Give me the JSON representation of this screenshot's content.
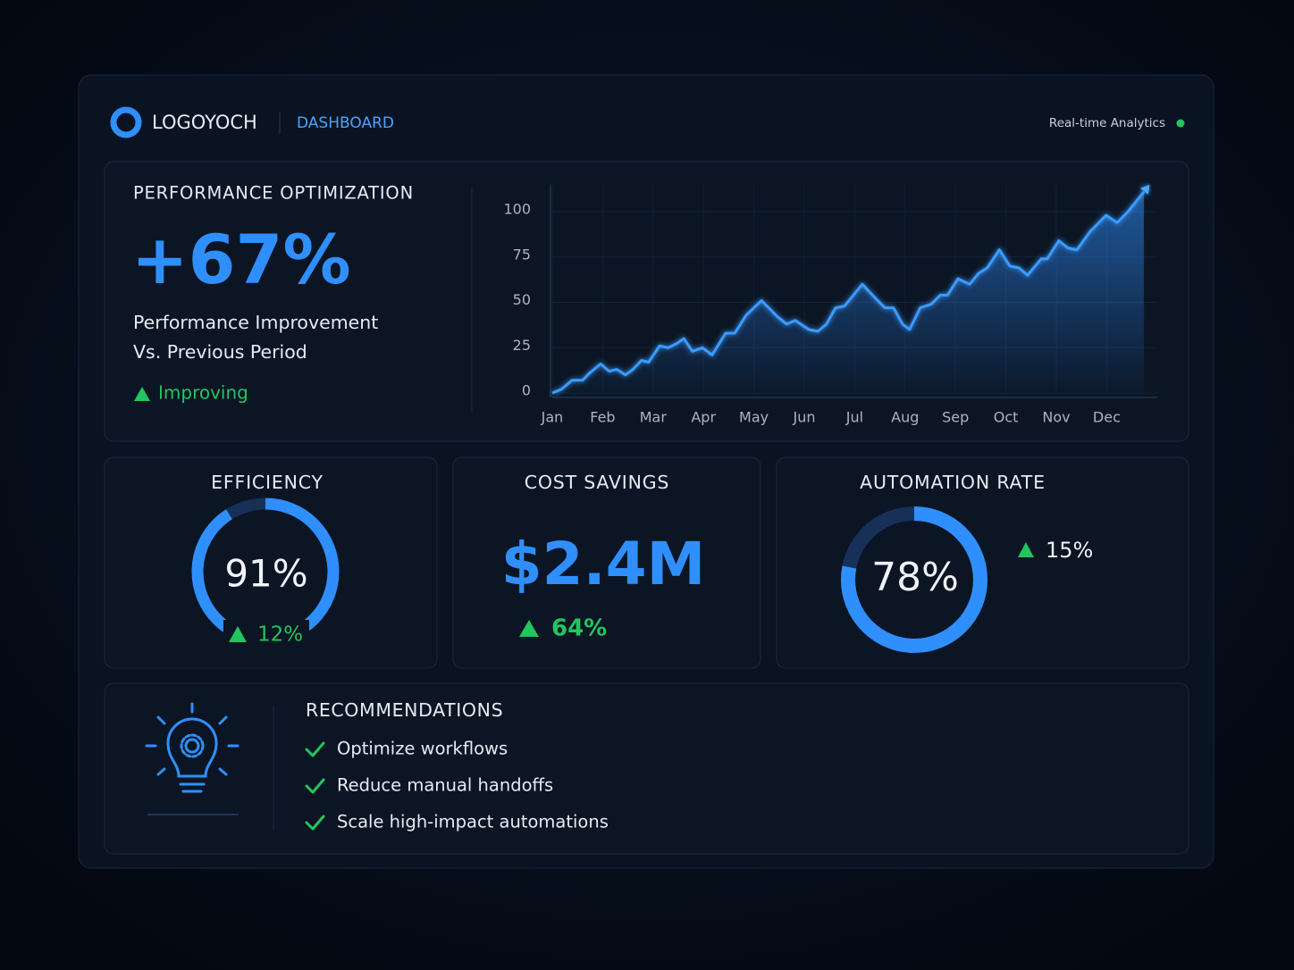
{
  "header": {
    "logo": "LOGOYOCH",
    "section": "DASHBOARD",
    "status": "Real-time Analytics"
  },
  "performance": {
    "title": "PERFORMANCE OPTIMIZATION",
    "value": "+67%",
    "subtitle": [
      "Performance Improvement",
      "Vs. Previous Period"
    ],
    "trend": "Improving"
  },
  "chart_data": {
    "type": "line",
    "color": "#3a9bff",
    "x": [
      0,
      0.18,
      0.39,
      0.6,
      0.74,
      0.96,
      1.13,
      1.28,
      1.45,
      1.6,
      1.77,
      1.91,
      2.13,
      2.3,
      2.45,
      2.61,
      2.78,
      2.98,
      3.17,
      3.44,
      3.62,
      3.85,
      4.15,
      4.47,
      4.65,
      4.82,
      5.09,
      5.27,
      5.44,
      5.62,
      5.8,
      6.15,
      6.42,
      6.6,
      6.77,
      6.95,
      7.09,
      7.3,
      7.52,
      7.7,
      7.84,
      8.05,
      8.28,
      8.46,
      8.63,
      8.87,
      9.08,
      9.26,
      9.43,
      9.7,
      9.82,
      10.05,
      10.23,
      10.41,
      10.67,
      10.99,
      11.21,
      11.42,
      11.74
    ],
    "values": [
      0,
      2,
      7,
      7,
      11,
      16,
      12,
      13,
      10,
      13,
      18,
      17,
      26,
      25,
      27,
      30,
      23,
      25,
      21,
      33,
      33,
      43,
      51,
      42,
      38,
      40,
      35,
      34,
      38,
      47,
      48,
      60,
      52,
      47,
      47,
      38,
      35,
      47,
      49,
      54,
      54,
      63,
      60,
      66,
      69,
      79,
      70,
      69,
      65,
      74,
      74,
      84,
      80,
      79,
      89,
      98,
      94,
      100,
      111
    ],
    "xlim": [
      0,
      12
    ],
    "xticks": [
      {
        "value": 0,
        "label": "Jan"
      },
      {
        "value": 1,
        "label": "Feb"
      },
      {
        "value": 2,
        "label": "Mar"
      },
      {
        "value": 3,
        "label": "Apr"
      },
      {
        "value": 4,
        "label": "May"
      },
      {
        "value": 5,
        "label": "Jun"
      },
      {
        "value": 6,
        "label": "Jul"
      },
      {
        "value": 7,
        "label": "Aug"
      },
      {
        "value": 8,
        "label": "Sep"
      },
      {
        "value": 9,
        "label": "Oct"
      },
      {
        "value": 10,
        "label": "Nov"
      },
      {
        "value": 11,
        "label": "Dec"
      }
    ],
    "ylim": [
      0,
      115
    ],
    "yticks": [
      0,
      25,
      50,
      75,
      100
    ],
    "grid": true
  },
  "cards": [
    {
      "title": "EFFICIENCY",
      "value": 91,
      "label": "91%",
      "change": "12%"
    },
    {
      "title": "COST SAVINGS",
      "label": "$2.4M",
      "change": "64%"
    },
    {
      "title": "AUTOMATION RATE",
      "value": 78,
      "label": "78%",
      "change": "15%"
    }
  ],
  "recommendations": {
    "title": "RECOMMENDATIONS",
    "items": [
      "Optimize workflows",
      "Reduce manual handoffs",
      "Scale high-impact automations"
    ]
  }
}
